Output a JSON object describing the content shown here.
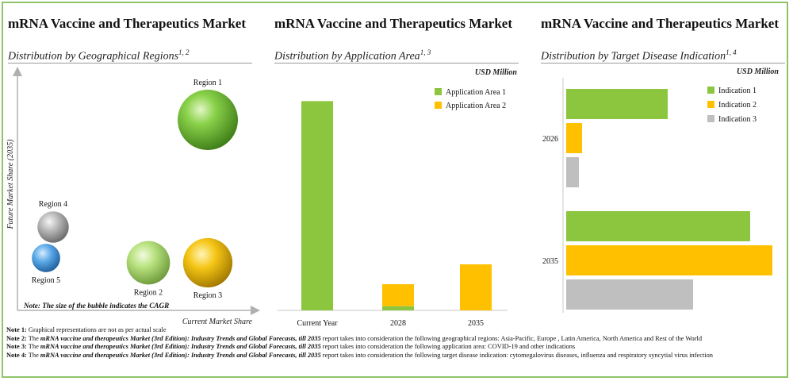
{
  "colors": {
    "green": "#8cc63f",
    "gold": "#ffc000",
    "gray": "#bfbfbf",
    "frame": "#8fc36a"
  },
  "panels": [
    {
      "title": "mRNA Vaccine and Therapeutics Market",
      "subtitle": "Distribution by Geographical Regions",
      "sup": "1, 2"
    },
    {
      "title": "mRNA Vaccine and Therapeutics Market",
      "subtitle": "Distribution by Application Area",
      "sup": "1, 3"
    },
    {
      "title": "mRNA Vaccine and Therapeutics Market",
      "subtitle": "Distribution by Target Disease Indication",
      "sup": "1, 4"
    }
  ],
  "chart1": {
    "ylabel": "Future Market Share (2035)",
    "xlabel": "Current Market Share",
    "note": "Note: The size of the bubble indicates the CAGR"
  },
  "chart2": {
    "unit": "USD Million"
  },
  "chart3": {
    "unit": "USD Million"
  },
  "chart_data": [
    {
      "type": "scatter",
      "title": "Distribution by Geographical Regions",
      "xlabel": "Current Market Share",
      "ylabel": "Future Market Share (2035)",
      "bubble_size_meaning": "CAGR",
      "points": [
        {
          "name": "Region 1",
          "x": 0.8,
          "y": 0.8,
          "size": 1.0,
          "color": "green"
        },
        {
          "name": "Region 2",
          "x": 0.55,
          "y": 0.2,
          "size": 0.72,
          "color": "lightgreen"
        },
        {
          "name": "Region 3",
          "x": 0.8,
          "y": 0.2,
          "size": 0.82,
          "color": "gold"
        },
        {
          "name": "Region 4",
          "x": 0.15,
          "y": 0.35,
          "size": 0.52,
          "color": "gray"
        },
        {
          "name": "Region 5",
          "x": 0.12,
          "y": 0.22,
          "size": 0.47,
          "color": "blue"
        }
      ]
    },
    {
      "type": "bar",
      "stacked": true,
      "title": "Distribution by Application Area",
      "unit": "USD Million",
      "categories": [
        "Current Year",
        "2028",
        "2035"
      ],
      "series": [
        {
          "name": "Application Area 1",
          "color": "#8cc63f",
          "values": [
            100,
            2,
            0
          ]
        },
        {
          "name": "Application Area 2",
          "color": "#ffc000",
          "values": [
            0,
            10.5,
            22
          ]
        }
      ],
      "ylim": [
        0,
        110
      ],
      "legend": "top-right"
    },
    {
      "type": "bar",
      "orientation": "horizontal",
      "title": "Distribution by Target Disease Indication",
      "unit": "USD Million",
      "categories": [
        "2026",
        "2035"
      ],
      "series": [
        {
          "name": "Indication 1",
          "color": "#8cc63f",
          "values": [
            16,
            29
          ]
        },
        {
          "name": "Indication 2",
          "color": "#ffc000",
          "values": [
            2.5,
            32.5
          ]
        },
        {
          "name": "Indication 3",
          "color": "#bfbfbf",
          "values": [
            2,
            20
          ]
        }
      ],
      "xlim": [
        0,
        40
      ],
      "legend": "top-right"
    }
  ],
  "notes": [
    {
      "label": "Note 1:",
      "text": "Graphical representations are not as per actual scale"
    },
    {
      "label": "Note 2:",
      "pre": "The",
      "report": "mRNA vaccine and therapeutics Market (3rd Edition): Industry Trends and Global Forecasts, till 2035",
      "text": "report takes into consideration the following geographical regions: Asia-Pacific, Europe , Latin America, North America and Rest of the World"
    },
    {
      "label": "Note 3:",
      "pre": "The",
      "report": "mRNA vaccine and therapeutics Market (3rd Edition): Industry Trends and Global Forecasts, till 2035",
      "text": "report takes into consideration the following application area: COVID-19 and other indications"
    },
    {
      "label": "Note 4:",
      "pre": "The",
      "report": "mRNA vaccine and therapeutics Market (3rd Edition): Industry Trends and Global Forecasts, till 2035",
      "text": "report takes into consideration the following target disease indication: cytomegalovirus diseases, influenza and respiratory syncytial virus infection"
    }
  ]
}
